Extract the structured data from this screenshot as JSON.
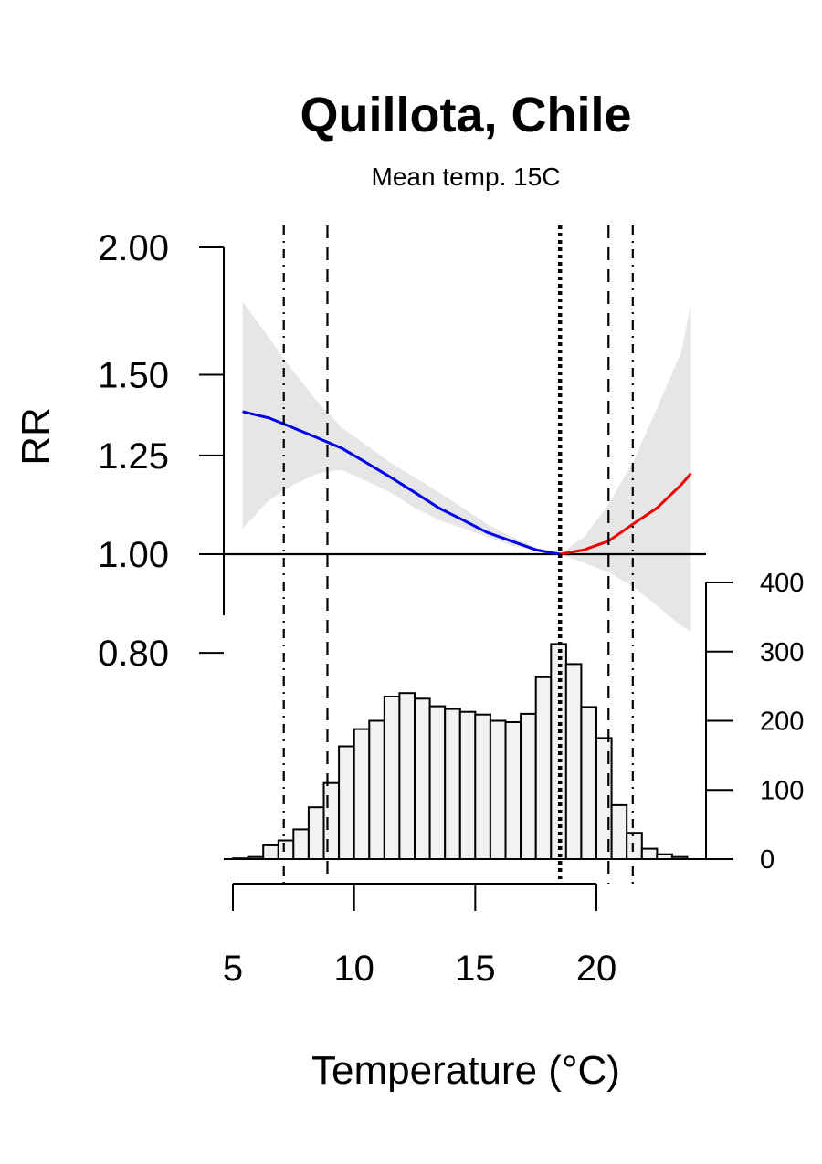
{
  "chart_data": {
    "type": "line",
    "title": "Quillota, Chile",
    "subtitle": "Mean temp. 15C",
    "xlabel": "Temperature (°C)",
    "ylabel": "RR",
    "xlim": [
      4.7,
      24.5
    ],
    "ylim": [
      0.8,
      2.0
    ],
    "y_scale": "log",
    "x_ticks": [
      "5",
      "10",
      "15",
      "20"
    ],
    "x_tick_values": [
      5,
      10,
      15,
      20
    ],
    "y_ticks": [
      "0.80",
      "1.00",
      "1.25",
      "1.50",
      "2.00"
    ],
    "y_tick_values": [
      0.8,
      1.0,
      1.25,
      1.5,
      2.0
    ],
    "reference_line": 1.0,
    "mmt": 18.5,
    "colors": {
      "cold": "#0000ee",
      "heat": "#ee0000",
      "ci": "#e6e6e6",
      "hist_fill": "#f2f2f2"
    },
    "series": [
      {
        "name": "cold",
        "x": [
          5.4,
          6.5,
          7.5,
          8.5,
          9.5,
          10.5,
          11.5,
          12.5,
          13.5,
          14.5,
          15.5,
          16.5,
          17.5,
          18.0,
          18.5
        ],
        "values": [
          1.38,
          1.36,
          1.33,
          1.3,
          1.27,
          1.23,
          1.19,
          1.15,
          1.11,
          1.08,
          1.05,
          1.03,
          1.01,
          1.005,
          1.0
        ],
        "ci_lower": [
          1.06,
          1.13,
          1.17,
          1.2,
          1.21,
          1.18,
          1.15,
          1.11,
          1.08,
          1.06,
          1.04,
          1.02,
          1.008,
          1.003,
          1.0
        ],
        "ci_upper": [
          1.77,
          1.63,
          1.51,
          1.41,
          1.33,
          1.28,
          1.23,
          1.19,
          1.15,
          1.11,
          1.07,
          1.04,
          1.015,
          1.007,
          1.0
        ]
      },
      {
        "name": "heat",
        "x": [
          18.5,
          19.5,
          20.5,
          21.5,
          22.5,
          23.5,
          23.9
        ],
        "values": [
          1.0,
          1.01,
          1.03,
          1.07,
          1.11,
          1.17,
          1.2
        ],
        "ci_lower": [
          1.0,
          0.98,
          0.96,
          0.93,
          0.89,
          0.85,
          0.84
        ],
        "ci_upper": [
          1.0,
          1.04,
          1.12,
          1.23,
          1.39,
          1.58,
          1.76
        ]
      }
    ],
    "vertical_lines": [
      {
        "x": 7.1,
        "style": "dotdash"
      },
      {
        "x": 8.9,
        "style": "dashed"
      },
      {
        "x": 18.5,
        "style": "dotted"
      },
      {
        "x": 20.5,
        "style": "dashed"
      },
      {
        "x": 21.5,
        "style": "dotdash"
      }
    ],
    "histogram": {
      "bin_width": 0.625,
      "start": 5.0,
      "counts": [
        1,
        3,
        20,
        27,
        43,
        75,
        110,
        163,
        188,
        200,
        235,
        240,
        232,
        221,
        217,
        213,
        209,
        200,
        198,
        210,
        263,
        311,
        282,
        220,
        175,
        78,
        38,
        15,
        7,
        3
      ],
      "ylim": [
        0,
        400
      ],
      "y_ticks": [
        "0",
        "100",
        "200",
        "300",
        "400"
      ],
      "y_tick_values": [
        0,
        100,
        200,
        300,
        400
      ]
    }
  }
}
